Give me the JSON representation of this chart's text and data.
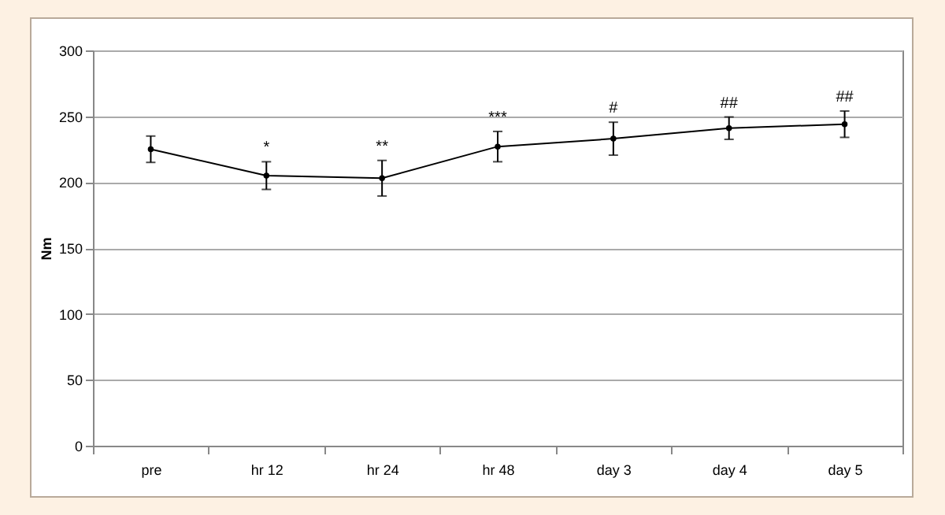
{
  "chart_data": {
    "type": "line",
    "ylabel": "Nm",
    "categories": [
      "pre",
      "hr 12",
      "hr 24",
      "hr 48",
      "day 3",
      "day 4",
      "day 5"
    ],
    "series": [
      {
        "color": "#000000",
        "values": [
          225,
          205,
          203,
          227,
          233,
          241,
          244
        ],
        "errors": [
          10,
          10.5,
          13.5,
          11.5,
          12.5,
          8.5,
          10
        ]
      }
    ],
    "ylim": [
      0,
      300
    ],
    "yticks": [
      0,
      50,
      100,
      150,
      200,
      250,
      300
    ],
    "grid": "y",
    "marker": "circle",
    "line_style": "solid",
    "annotations": [
      "*",
      "**",
      "***",
      "#",
      "##",
      "##"
    ]
  }
}
